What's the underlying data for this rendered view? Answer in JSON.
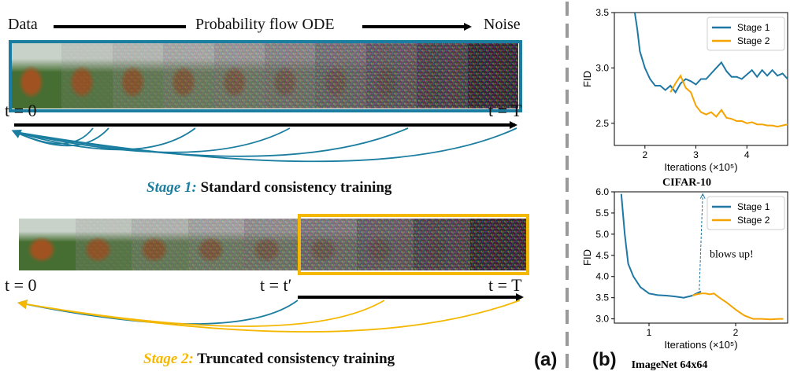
{
  "panel_a": {
    "label": "(a)",
    "top": {
      "data_label": "Data",
      "ode_label": "Probability flow ODE",
      "noise_label": "Noise",
      "t_start": "t = 0",
      "t_end": "t = T",
      "caption_stage": "Stage 1:",
      "caption_text": "Standard consistency training",
      "color": "#1b7ea0"
    },
    "bottom": {
      "t_start": "t = 0",
      "t_mid": "t = t′",
      "t_end": "t = T",
      "caption_stage": "Stage 2:",
      "caption_text": "Truncated consistency training",
      "color": "#f5b800"
    }
  },
  "panel_b": {
    "label": "(b)",
    "chart_data": [
      {
        "type": "line",
        "title": "CIFAR-10",
        "xlabel": "Iterations (×10⁵)",
        "ylabel": "FID",
        "xlim": [
          1.4,
          4.8
        ],
        "ylim": [
          2.3,
          3.5
        ],
        "xticks": [
          "2",
          "3",
          "4"
        ],
        "yticks": [
          "2.5",
          "3.0",
          "3.5"
        ],
        "legend": "top-right",
        "series": [
          {
            "name": "Stage 1",
            "color": "#1f77a4",
            "x": [
              1.8,
              1.85,
              1.9,
              2.0,
              2.1,
              2.2,
              2.3,
              2.4,
              2.5,
              2.6,
              2.7,
              2.8,
              2.9,
              3.0,
              3.1,
              3.2,
              3.3,
              3.4,
              3.5,
              3.6,
              3.7,
              3.8,
              3.9,
              4.0,
              4.1,
              4.2,
              4.3,
              4.4,
              4.5,
              4.6,
              4.7,
              4.8
            ],
            "y": [
              3.5,
              3.35,
              3.15,
              3.0,
              2.9,
              2.84,
              2.84,
              2.8,
              2.84,
              2.78,
              2.86,
              2.9,
              2.88,
              2.85,
              2.9,
              2.9,
              2.95,
              3.0,
              3.05,
              2.97,
              2.92,
              2.92,
              2.9,
              2.94,
              2.98,
              2.92,
              2.98,
              2.93,
              2.98,
              2.93,
              2.95,
              2.9
            ]
          },
          {
            "name": "Stage 2",
            "color": "#f5a300",
            "x": [
              2.5,
              2.6,
              2.7,
              2.8,
              2.9,
              3.0,
              3.1,
              3.2,
              3.3,
              3.4,
              3.5,
              3.6,
              3.7,
              3.8,
              3.9,
              4.0,
              4.1,
              4.2,
              4.3,
              4.4,
              4.5,
              4.6,
              4.7,
              4.8
            ],
            "y": [
              2.78,
              2.86,
              2.93,
              2.82,
              2.78,
              2.66,
              2.6,
              2.58,
              2.6,
              2.56,
              2.62,
              2.55,
              2.54,
              2.52,
              2.52,
              2.5,
              2.51,
              2.49,
              2.49,
              2.48,
              2.48,
              2.47,
              2.48,
              2.49
            ]
          }
        ]
      },
      {
        "type": "line",
        "title": "ImageNet 64x64",
        "xlabel": "Iterations (×10⁵)",
        "ylabel": "FID",
        "xlim": [
          0.6,
          2.6
        ],
        "ylim": [
          2.9,
          6.0
        ],
        "xticks": [
          "1",
          "2"
        ],
        "yticks": [
          "3.0",
          "3.5",
          "4.0",
          "4.5",
          "5.0",
          "5.5",
          "6.0"
        ],
        "legend": "top-right",
        "annotation": "blows up!",
        "series": [
          {
            "name": "Stage 1",
            "color": "#1f77a4",
            "x": [
              0.68,
              0.72,
              0.76,
              0.82,
              0.9,
              1.0,
              1.1,
              1.2,
              1.3,
              1.4,
              1.5,
              1.55,
              1.6
            ],
            "y": [
              5.95,
              5.0,
              4.3,
              4.0,
              3.75,
              3.6,
              3.56,
              3.55,
              3.53,
              3.5,
              3.55,
              3.6,
              3.65
            ]
          },
          {
            "name": "Stage 2",
            "color": "#f5a300",
            "x": [
              1.5,
              1.55,
              1.6,
              1.65,
              1.7,
              1.75,
              1.8,
              1.85,
              1.9,
              1.95,
              2.0,
              2.1,
              2.2,
              2.3,
              2.4,
              2.5,
              2.55
            ],
            "y": [
              3.55,
              3.58,
              3.6,
              3.6,
              3.58,
              3.6,
              3.52,
              3.45,
              3.38,
              3.3,
              3.22,
              3.08,
              3.0,
              3.0,
              2.99,
              3.0,
              3.0
            ]
          }
        ]
      }
    ]
  }
}
